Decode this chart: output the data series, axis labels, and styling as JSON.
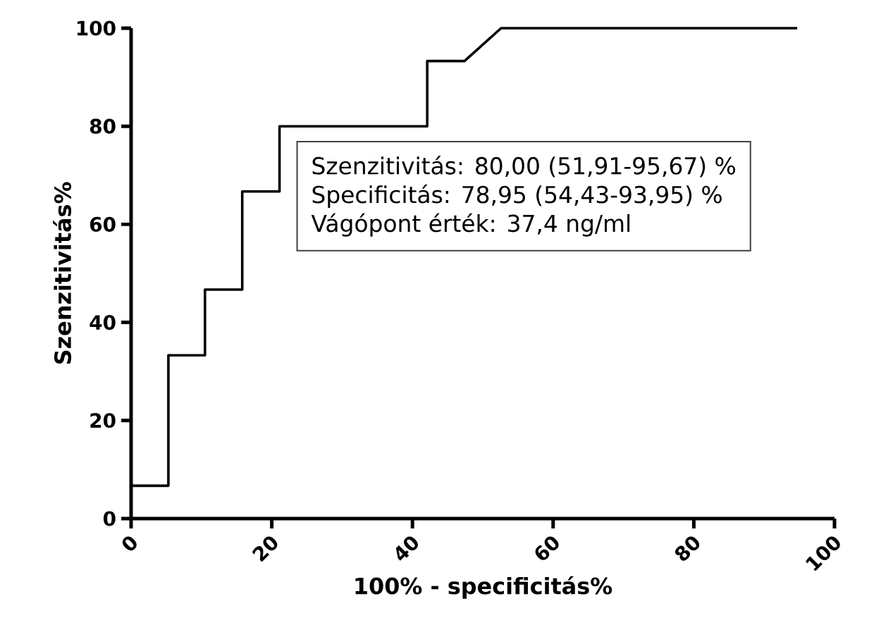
{
  "chart_data": {
    "type": "line",
    "xlabel": "100% - specificitás%",
    "ylabel": "Szenzitivitás%",
    "x": [
      0,
      5.3,
      5.3,
      10.5,
      10.5,
      15.8,
      15.8,
      21.1,
      21.1,
      42.1,
      42.1,
      47.4,
      52.6,
      94.7
    ],
    "series": [
      {
        "color": "#000000",
        "values": [
          6.7,
          6.7,
          33.3,
          33.3,
          46.7,
          46.7,
          66.7,
          66.7,
          80,
          80,
          93.3,
          93.3,
          100,
          100
        ]
      }
    ],
    "xlim": [
      0,
      100
    ],
    "ylim": [
      0,
      100
    ],
    "xticks": [
      0,
      20,
      40,
      60,
      80,
      100
    ],
    "yticks": [
      0,
      20,
      40,
      60,
      80,
      100
    ],
    "grid": false,
    "marker": "none",
    "line_style": "solid",
    "annotations": [
      "Szenzitivitás: 80,00 (51,91-95,67) %",
      "Specificitás: 78,95 (54,43-93,95) %",
      "Vágópont érték: 37,4 ng/ml"
    ]
  }
}
